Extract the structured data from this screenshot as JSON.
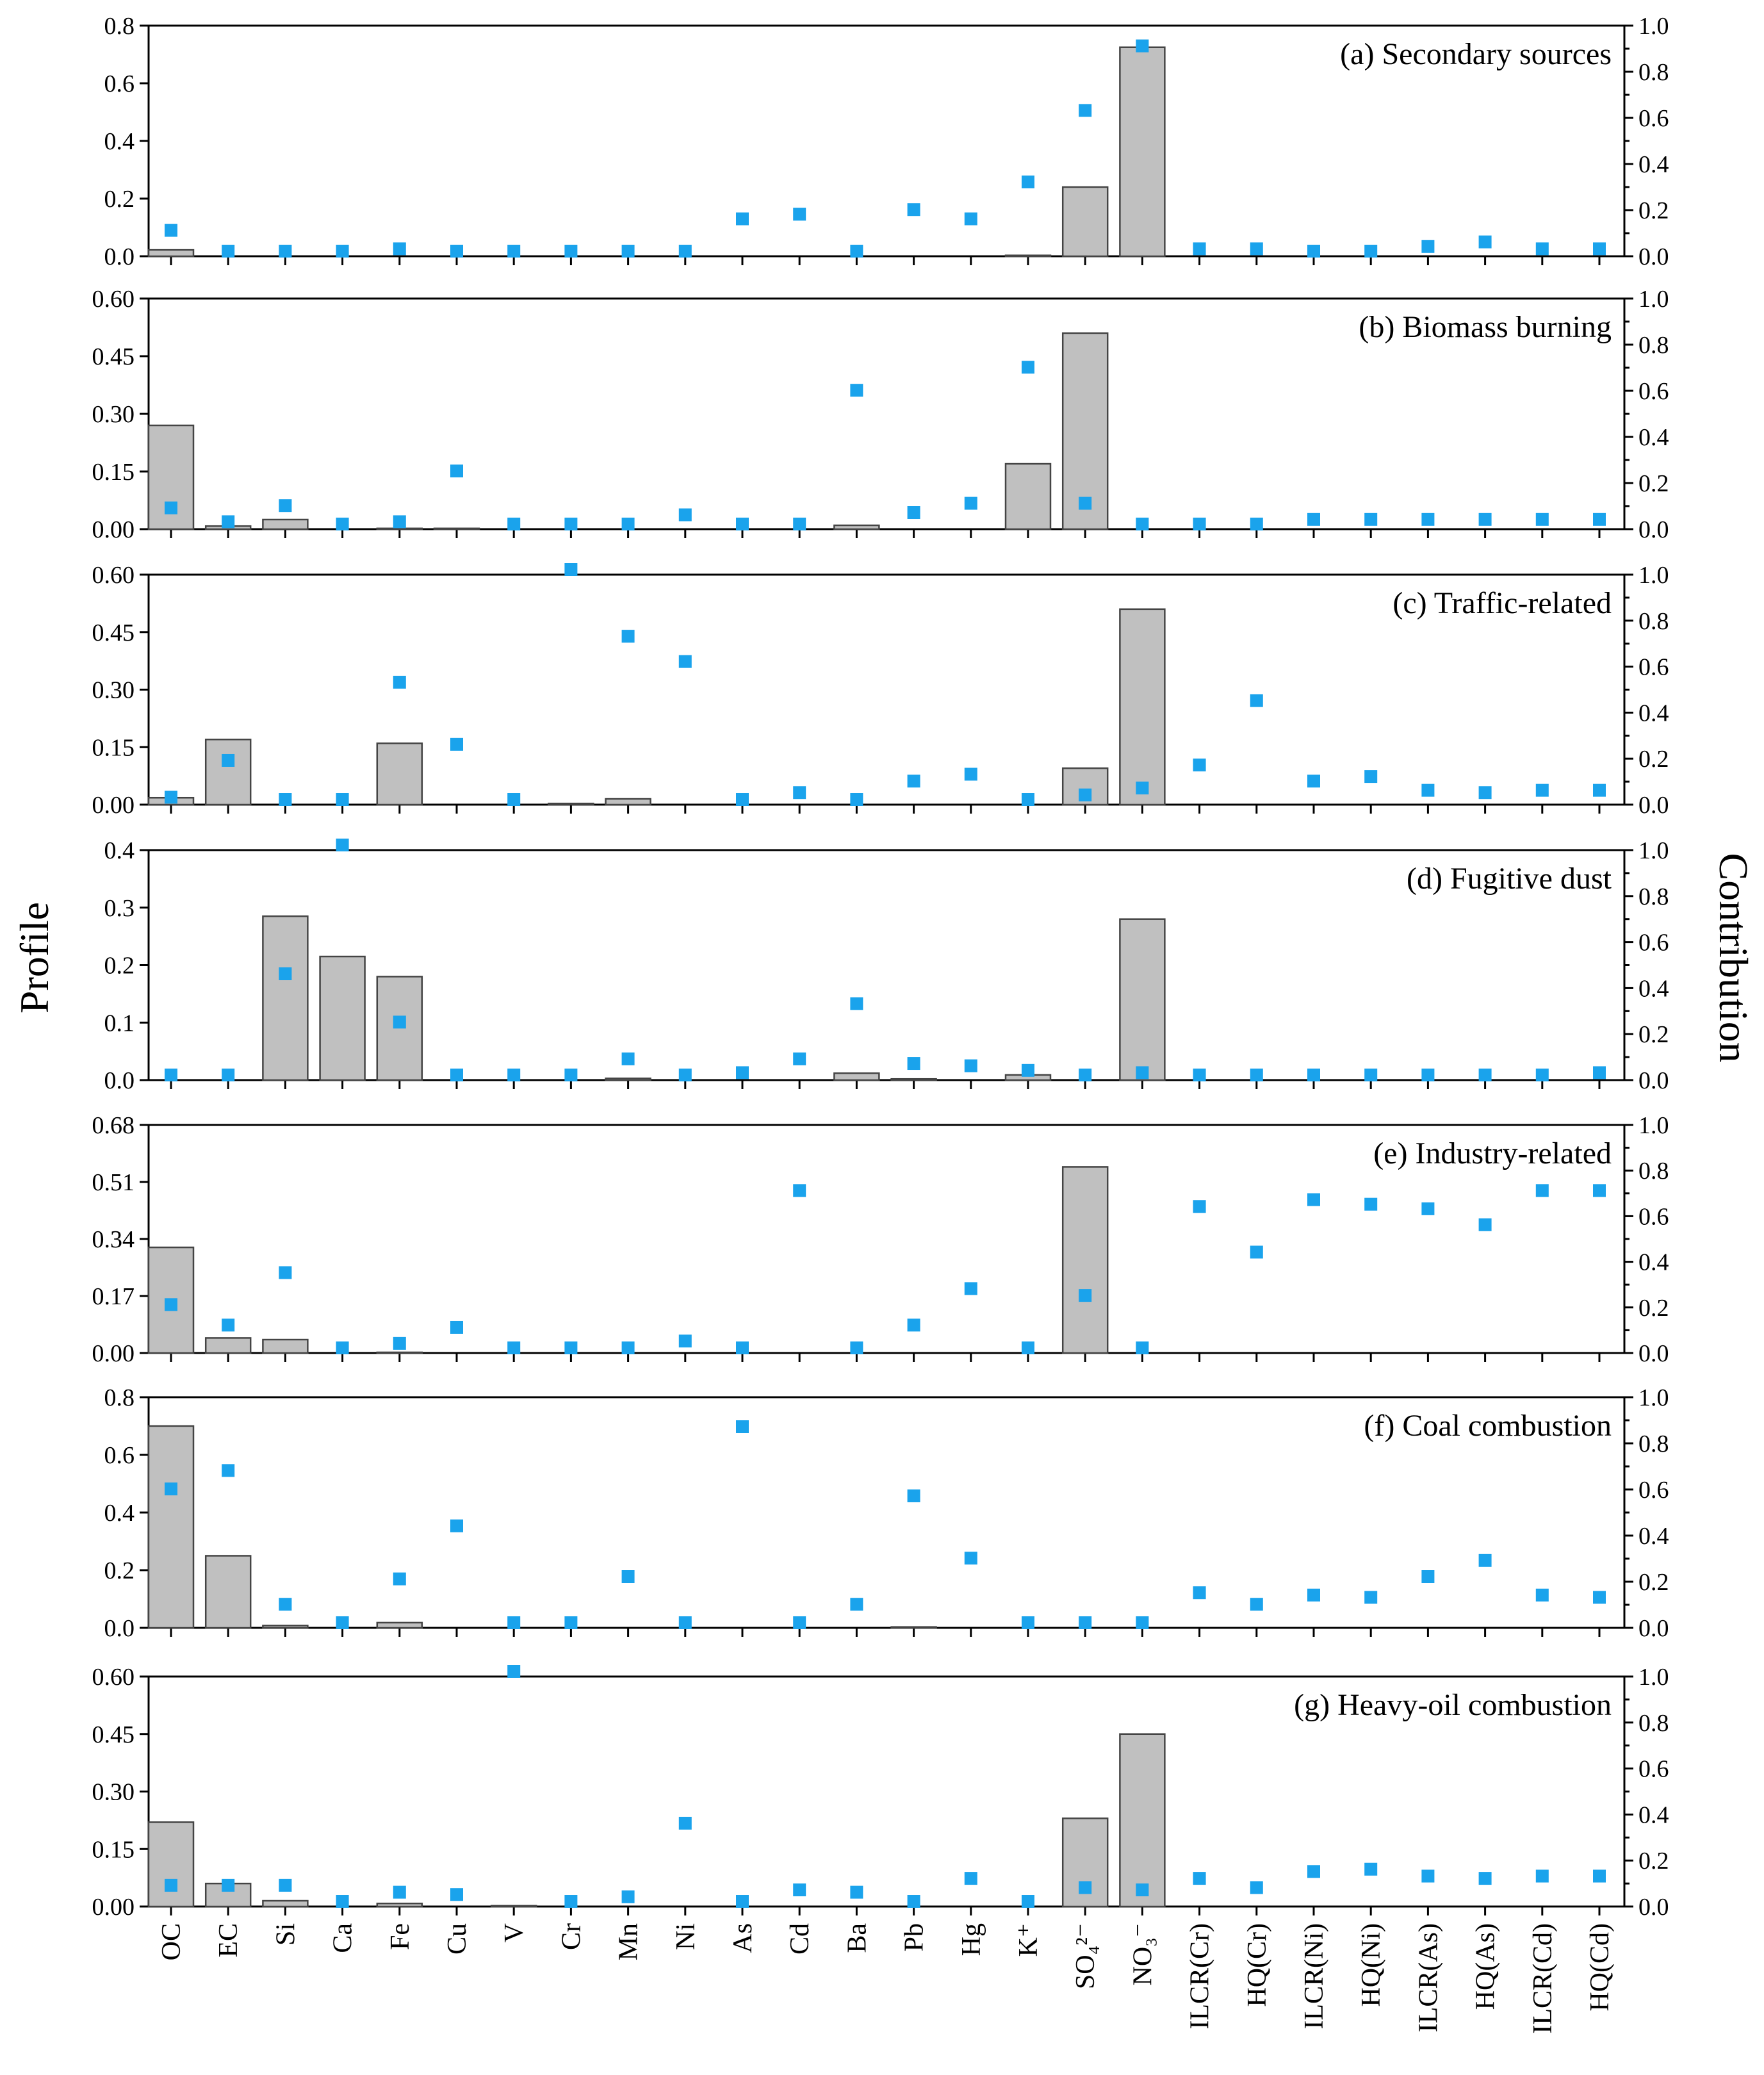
{
  "chart_data": {
    "type": "bar",
    "ylabel_left": "Profile",
    "ylabel_right": "Contribution",
    "categories": [
      "OC",
      "EC",
      "Si",
      "Ca",
      "Fe",
      "Cu",
      "V",
      "Cr",
      "Mn",
      "Ni",
      "As",
      "Cd",
      "Ba",
      "Pb",
      "Hg",
      "K⁺",
      "SO₄²⁻",
      "NO₃⁻",
      "ILCR(Cr)",
      "HQ(Cr)",
      "ILCR(Ni)",
      "HQ(Ni)",
      "ILCR(As)",
      "HQ(As)",
      "ILCR(Cd)",
      "HQ(Cd)"
    ],
    "right_ylim": [
      0,
      1.0
    ],
    "right_ticks": [
      "0.0",
      "0.2",
      "0.4",
      "0.6",
      "0.8",
      "1.0"
    ],
    "panels": [
      {
        "title": "(a) Secondary sources",
        "ylim": [
          0,
          0.8
        ],
        "left_ticks": [
          "0.0",
          "0.2",
          "0.4",
          "0.6",
          "0.8"
        ],
        "profile": [
          0.022,
          0,
          0,
          0,
          0,
          0,
          0,
          0,
          0,
          0,
          0,
          0,
          0,
          0,
          0,
          0.003,
          0.24,
          0.725,
          null,
          null,
          null,
          null,
          null,
          null,
          null,
          null
        ],
        "contribution": [
          0.09,
          0.0,
          0.0,
          0.0,
          0.01,
          0.0,
          0.0,
          0.0,
          0.0,
          0.0,
          0.14,
          0.16,
          0.0,
          0.18,
          0.14,
          0.3,
          0.61,
          0.89,
          0.01,
          0.01,
          0.0,
          0.0,
          0.02,
          0.04,
          0.01,
          0.01
        ]
      },
      {
        "title": "(b) Biomass burning",
        "ylim": [
          0,
          0.6
        ],
        "left_ticks": [
          "0.00",
          "0.15",
          "0.30",
          "0.45",
          "0.60"
        ],
        "profile": [
          0.27,
          0.008,
          0.025,
          0,
          0.002,
          0.002,
          0,
          0,
          0,
          0,
          0,
          0,
          0.01,
          0,
          0,
          0.17,
          0.51,
          0,
          null,
          null,
          null,
          null,
          null,
          null,
          null,
          null
        ],
        "contribution": [
          0.07,
          0.01,
          0.08,
          0.0,
          0.01,
          0.23,
          0.0,
          0.0,
          0.0,
          0.04,
          0.0,
          0.0,
          0.58,
          0.05,
          0.09,
          0.68,
          0.09,
          0.0,
          0.0,
          0.0,
          0.02,
          0.02,
          0.02,
          0.02,
          0.02,
          0.02
        ]
      },
      {
        "title": "(c) Traffic-related",
        "ylim": [
          0,
          0.6
        ],
        "left_ticks": [
          "0.00",
          "0.15",
          "0.30",
          "0.45",
          "0.60"
        ],
        "profile": [
          0.018,
          0.17,
          0,
          0,
          0.16,
          0,
          0,
          0.003,
          0.015,
          0,
          0,
          0,
          0,
          0,
          0,
          0,
          0.095,
          0.51,
          null,
          null,
          null,
          null,
          null,
          null,
          null,
          null
        ],
        "contribution": [
          0.01,
          0.17,
          0.0,
          0.0,
          0.51,
          0.24,
          0.0,
          1.0,
          0.71,
          0.6,
          0.0,
          0.03,
          0.0,
          0.08,
          0.11,
          0.0,
          0.02,
          0.05,
          0.15,
          0.43,
          0.08,
          0.1,
          0.04,
          0.03,
          0.04,
          0.04
        ]
      },
      {
        "title": "(d) Fugitive dust",
        "ylim": [
          0,
          0.4
        ],
        "left_ticks": [
          "0.0",
          "0.1",
          "0.2",
          "0.3",
          "0.4"
        ],
        "profile": [
          0,
          0,
          0.285,
          0.215,
          0.18,
          0,
          0,
          0,
          0.003,
          0,
          0,
          0,
          0.012,
          0.002,
          0,
          0.009,
          0,
          0.28,
          null,
          null,
          null,
          null,
          null,
          null,
          null,
          null
        ],
        "contribution": [
          0.0,
          0.0,
          0.44,
          1.0,
          0.23,
          0.0,
          0.0,
          0.0,
          0.07,
          0.0,
          0.01,
          0.07,
          0.31,
          0.05,
          0.04,
          0.02,
          0.0,
          0.01,
          0.0,
          0.0,
          0.0,
          0.0,
          0.0,
          0.0,
          0.0,
          0.01
        ]
      },
      {
        "title": "(e) Industry-related",
        "ylim": [
          0,
          0.68
        ],
        "left_ticks": [
          "0.00",
          "0.17",
          "0.34",
          "0.51",
          "0.68"
        ],
        "profile": [
          0.315,
          0.045,
          0.04,
          0,
          0.002,
          0,
          0,
          0,
          0,
          0,
          0,
          0,
          0,
          0,
          0,
          0,
          0.555,
          0,
          null,
          null,
          null,
          null,
          null,
          null,
          null,
          null
        ],
        "contribution": [
          0.19,
          0.1,
          0.33,
          0.0,
          0.02,
          0.09,
          0.0,
          0.0,
          0.0,
          0.03,
          0.0,
          0.69,
          0.0,
          0.1,
          0.26,
          0.0,
          0.23,
          0.0,
          0.62,
          0.42,
          0.65,
          0.63,
          0.61,
          0.54,
          0.69,
          0.69
        ]
      },
      {
        "title": "(f) Coal combustion",
        "ylim": [
          0,
          0.8
        ],
        "left_ticks": [
          "0.0",
          "0.2",
          "0.4",
          "0.6",
          "0.8"
        ],
        "profile": [
          0.7,
          0.25,
          0.008,
          0,
          0.018,
          0,
          0,
          0,
          0,
          0,
          0,
          0,
          0,
          0.003,
          0,
          0,
          0,
          0,
          null,
          null,
          null,
          null,
          null,
          null,
          null,
          null
        ],
        "contribution": [
          0.58,
          0.66,
          0.08,
          0.0,
          0.19,
          0.42,
          0.0,
          0.0,
          0.2,
          0.0,
          0.85,
          0.0,
          0.08,
          0.55,
          0.28,
          0.0,
          0.0,
          0.0,
          0.13,
          0.08,
          0.12,
          0.11,
          0.2,
          0.27,
          0.12,
          0.11
        ]
      },
      {
        "title": "(g) Heavy-oil combustion",
        "ylim": [
          0,
          0.6
        ],
        "left_ticks": [
          "0.00",
          "0.15",
          "0.30",
          "0.45",
          "0.60"
        ],
        "profile": [
          0.22,
          0.06,
          0.015,
          0,
          0.008,
          0,
          0.002,
          0,
          0,
          0,
          0,
          0,
          0,
          0,
          0,
          0,
          0.23,
          0.45,
          null,
          null,
          null,
          null,
          null,
          null,
          null,
          null
        ],
        "contribution": [
          0.07,
          0.07,
          0.07,
          0.0,
          0.04,
          0.03,
          1.0,
          0.0,
          0.02,
          0.34,
          0.0,
          0.05,
          0.04,
          0.0,
          0.1,
          0.0,
          0.06,
          0.05,
          0.1,
          0.06,
          0.13,
          0.14,
          0.11,
          0.1,
          0.11,
          0.11
        ]
      }
    ],
    "colors": {
      "bar_fill": "#c0c0c0",
      "bar_stroke": "#444444",
      "marker": "#1aa3ec",
      "axis": "#000000"
    }
  }
}
